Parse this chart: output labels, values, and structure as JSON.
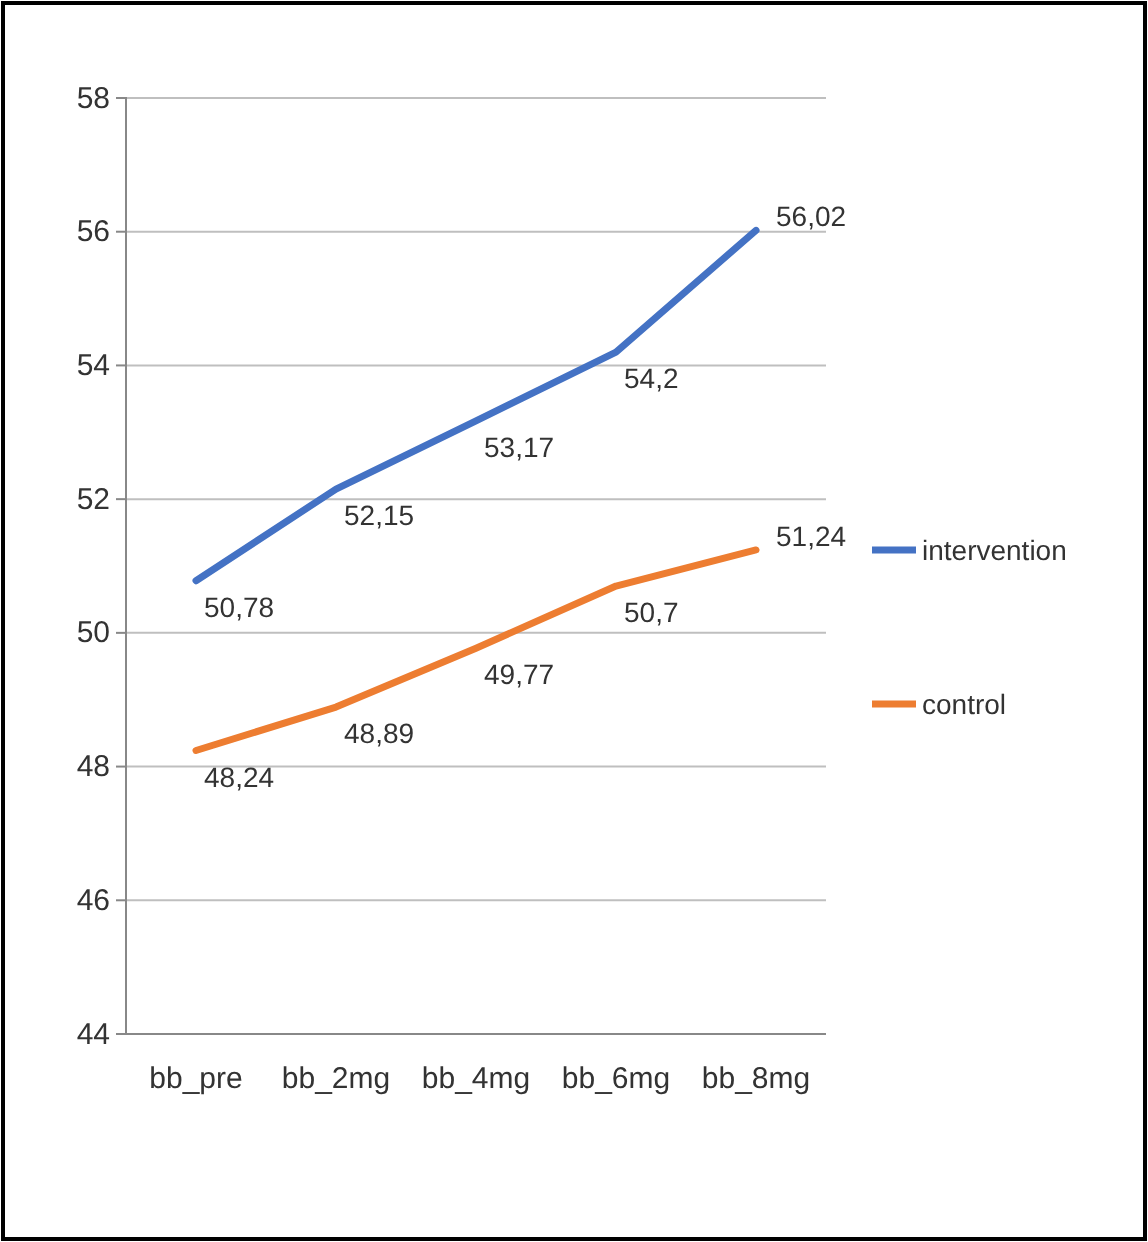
{
  "chart_data": {
    "type": "line",
    "categories": [
      "bb_pre",
      "bb_2mg",
      "bb_4mg",
      "bb_6mg",
      "bb_8mg"
    ],
    "series": [
      {
        "name": "intervention",
        "color": "#4472c4",
        "values": [
          50.78,
          52.15,
          53.17,
          54.2,
          56.02
        ],
        "value_labels": [
          "50,78",
          "52,15",
          "53,17",
          "54,2",
          "56,02"
        ]
      },
      {
        "name": "control",
        "color": "#ed7d31",
        "values": [
          48.24,
          48.89,
          49.77,
          50.7,
          51.24
        ],
        "value_labels": [
          "48,24",
          "48,89",
          "49,77",
          "50,7",
          "51,24"
        ]
      }
    ],
    "ylim": [
      44,
      58
    ],
    "yticks": [
      44,
      46,
      48,
      50,
      52,
      54,
      56,
      58
    ],
    "grid": "y",
    "legend": "right",
    "marker": "none",
    "line_style": "solid"
  }
}
